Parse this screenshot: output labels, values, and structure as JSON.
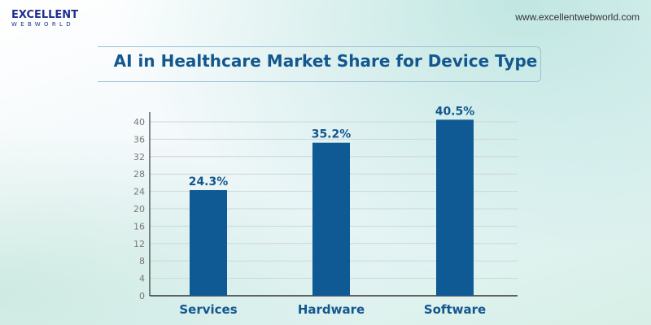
{
  "logo": {
    "line1": "EXCELLENT",
    "line2": "WEBWORLD"
  },
  "website": "www.excellentwebworld.com",
  "chart_data": {
    "type": "bar",
    "title": "AI in Healthcare Market Share for Device Type",
    "categories": [
      "Services",
      "Hardware",
      "Software"
    ],
    "values": [
      24.3,
      35.2,
      40.5
    ],
    "data_labels": [
      "24.3%",
      "35.2%",
      "40.5%"
    ],
    "yticks": [
      0,
      4,
      8,
      12,
      16,
      20,
      24,
      28,
      32,
      36,
      40
    ],
    "ylim": [
      0,
      40
    ],
    "grid": true,
    "bar_color": "#0f5a94",
    "label_color": "#13578f"
  }
}
